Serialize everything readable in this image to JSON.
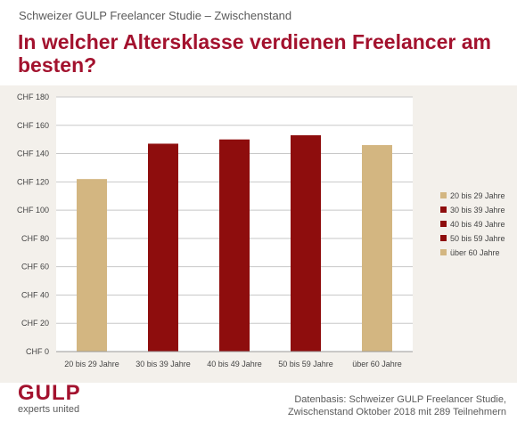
{
  "header": {
    "subtitle": "Schweizer GULP Freelancer Studie – Zwischenstand",
    "title": "In welcher Altersklasse verdienen Freelancer am besten?"
  },
  "chart_data": {
    "type": "bar",
    "categories": [
      "20 bis 29 Jahre",
      "30 bis 39 Jahre",
      "40 bis 49 Jahre",
      "50 bis 59 Jahre",
      "über 60 Jahre"
    ],
    "values": [
      122,
      147,
      150,
      153,
      146
    ],
    "colors": [
      "#d3b681",
      "#8e0d0d",
      "#8e0d0d",
      "#8e0d0d",
      "#d3b681"
    ],
    "ylim": [
      0,
      180
    ],
    "yticks": [
      0,
      20,
      40,
      60,
      80,
      100,
      120,
      140,
      160,
      180
    ],
    "ytick_labels": [
      "CHF 0",
      "CHF 20",
      "CHF 40",
      "CHF 60",
      "CHF 80",
      "CHF 100",
      "CHF 120",
      "CHF 140",
      "CHF 160",
      "CHF 180"
    ],
    "grid": true,
    "legend_position": "right",
    "legend": [
      {
        "label": "20 bis 29 Jahre",
        "color": "#d3b681"
      },
      {
        "label": "30 bis 39 Jahre",
        "color": "#8e0d0d"
      },
      {
        "label": "40 bis 49 Jahre",
        "color": "#8e0d0d"
      },
      {
        "label": "50 bis 59 Jahre",
        "color": "#8e0d0d"
      },
      {
        "label": "über 60 Jahre",
        "color": "#d3b681"
      }
    ]
  },
  "footer": {
    "logo": "GULP",
    "tagline": "experts united",
    "source_line1": "Datenbasis: Schweizer GULP Freelancer Studie,",
    "source_line2": "Zwischenstand Oktober 2018 mit 289 Teilnehmern"
  }
}
